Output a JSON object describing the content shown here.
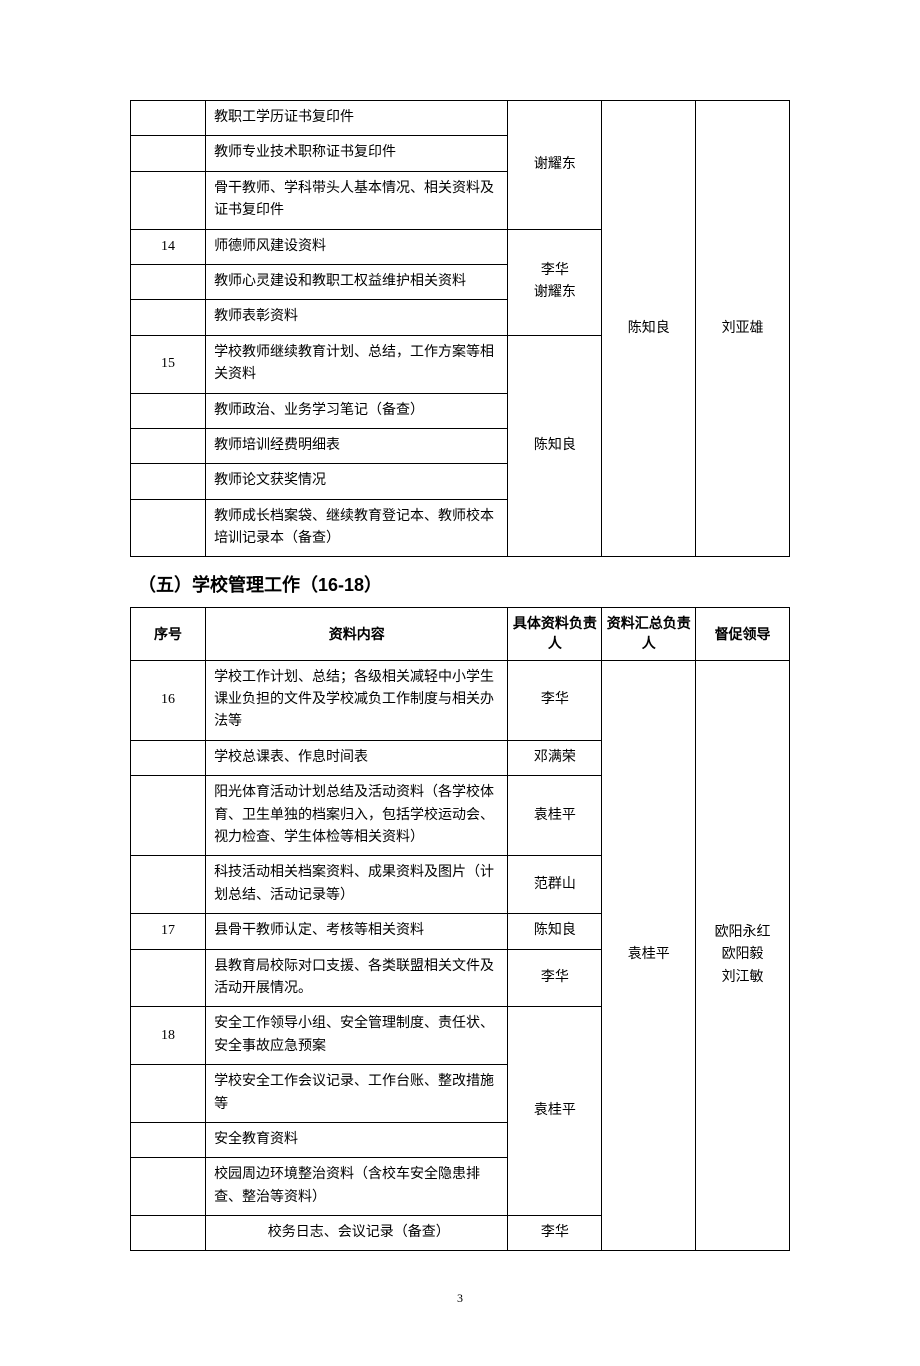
{
  "table1": {
    "merged_col4": "陈知良",
    "merged_col5": "刘亚雄",
    "group1": {
      "col3": "谢耀东",
      "rows": [
        {
          "seq": "",
          "content": "教职工学历证书复印件"
        },
        {
          "seq": "",
          "content": "教师专业技术职称证书复印件"
        },
        {
          "seq": "",
          "content": "骨干教师、学科带头人基本情况、相关资料及证书复印件"
        }
      ]
    },
    "group2": {
      "col3": "李华\n谢耀东",
      "rows": [
        {
          "seq": "14",
          "content": "师德师风建设资料"
        },
        {
          "seq": "",
          "content": "教师心灵建设和教职工权益维护相关资料"
        },
        {
          "seq": "",
          "content": "教师表彰资料"
        }
      ]
    },
    "group3": {
      "col3": "陈知良",
      "rows": [
        {
          "seq": "15",
          "content": "学校教师继续教育计划、总结，工作方案等相关资料"
        },
        {
          "seq": "",
          "content": "教师政治、业务学习笔记（备查）"
        },
        {
          "seq": "",
          "content": "教师培训经费明细表"
        },
        {
          "seq": "",
          "content": "教师论文获奖情况"
        },
        {
          "seq": "",
          "content": "教师成长档案袋、继续教育登记本、教师校本培训记录本（备查）"
        }
      ]
    }
  },
  "section_title": "（五）学校管理工作（16-18）",
  "table2": {
    "headers": {
      "seq": "序号",
      "content": "资料内容",
      "p1": "具体资料负责人",
      "p2": "资料汇总负责人",
      "p3": "督促领导"
    },
    "merged_col4": "袁桂平",
    "merged_col5": "欧阳永红\n欧阳毅\n刘江敏",
    "rows": [
      {
        "seq": "16",
        "content": "学校工作计划、总结；各级相关减轻中小学生课业负担的文件及学校减负工作制度与相关办法等",
        "p1": "李华",
        "p1_span": 1
      },
      {
        "seq": "",
        "content": "学校总课表、作息时间表",
        "p1": "邓满荣",
        "p1_span": 1
      },
      {
        "seq": "",
        "content": "阳光体育活动计划总结及活动资料（各学校体育、卫生单独的档案归入，包括学校运动会、视力检查、学生体检等相关资料）",
        "p1": "袁桂平",
        "p1_span": 1
      },
      {
        "seq": "",
        "content": "科技活动相关档案资料、成果资料及图片（计划总结、活动记录等）",
        "p1": "范群山",
        "p1_span": 1
      },
      {
        "seq": "17",
        "content": "县骨干教师认定、考核等相关资料",
        "p1": "陈知良",
        "p1_span": 1
      },
      {
        "seq": "",
        "content": "县教育局校际对口支援、各类联盟相关文件及活动开展情况。",
        "p1": "李华",
        "p1_span": 1
      },
      {
        "seq": "18",
        "content": "安全工作领导小组、安全管理制度、责任状、安全事故应急预案",
        "p1": "袁桂平",
        "p1_span": 4
      },
      {
        "seq": "",
        "content": "学校安全工作会议记录、工作台账、整改措施等"
      },
      {
        "seq": "",
        "content": "安全教育资料"
      },
      {
        "seq": "",
        "content": "校园周边环境整治资料（含校车安全隐患排查、整治等资料）"
      },
      {
        "seq": "",
        "content": "校务日志、会议记录（备查）",
        "p1": "李华",
        "p1_span": 1,
        "content_center": true
      }
    ]
  },
  "page_number": "3"
}
